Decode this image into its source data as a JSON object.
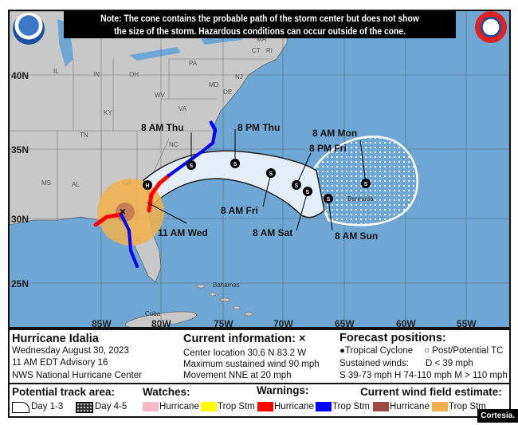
{
  "note": {
    "line1": "Note: The cone contains the probable path of the storm center but does not show",
    "line2": "the size of the storm. Hazardous conditions can occur outside of the cone."
  },
  "map": {
    "lat_labels": [
      "40N",
      "35N",
      "30N",
      "25N"
    ],
    "lon_labels": [
      "85W",
      "80W",
      "75W",
      "70W",
      "65W",
      "60W",
      "55W"
    ],
    "states": [
      "IL",
      "IN",
      "OH",
      "PA",
      "MA",
      "CT",
      "RI",
      "NJ",
      "MD",
      "DE",
      "WV",
      "VA",
      "KY",
      "TN",
      "NC",
      "GA",
      "AL",
      "MS",
      "FL"
    ],
    "places": [
      "Bahamas",
      "Cuba",
      "Bermuda"
    ],
    "forecast_labels": [
      "11 AM Wed",
      "8 AM Thu",
      "8 PM Thu",
      "8 AM Fri",
      "8 PM Fri",
      "8 AM Sat",
      "8 AM Sun",
      "8 AM Mon"
    ],
    "colors": {
      "ocean": "#6ea7d4",
      "land": "#c8c8c8",
      "cone_day13": "#e3eef8",
      "hurricane_warning": "#ff0000",
      "tropical_storm_warning": "#0000ff",
      "ts_wind_field": "#f2b04a"
    }
  },
  "info": {
    "storm_name": "Hurricane Idalia",
    "date": "Wednesday August 30, 2023",
    "advisory": "11 AM EDT Advisory 16",
    "center": "NWS National Hurricane Center",
    "current_title": "Current information: ×",
    "location": "Center location 30.6 N 83.2 W",
    "wind": "Maximum sustained wind 90 mph",
    "movement": "Movement NNE at 20 mph",
    "forecast_title": "Forecast positions:",
    "tc": "Tropical Cyclone",
    "post_tc": "Post/Potential TC",
    "sustained": "Sustained winds:",
    "d": "D < 39 mph",
    "scale": "S 39-73 mph  H 74-110 mph  M > 110 mph"
  },
  "legend": {
    "track_title": "Potential track area:",
    "day13": "Day 1-3",
    "day45": "Day 4-5",
    "watches_title": "Watches:",
    "warnings_title": "Warnings:",
    "wind_title": "Current wind field estimate:",
    "hurricane": "Hurricane",
    "trop_stm": "Trop Stm",
    "colors": {
      "hurricane_watch": "#f8b8c8",
      "ts_watch": "#ffff00",
      "hurricane_warning": "#ff0000",
      "ts_warning": "#0000ff",
      "hurricane_wind": "#a04848",
      "ts_wind": "#f2b04a"
    }
  },
  "credit": "Cortesia."
}
